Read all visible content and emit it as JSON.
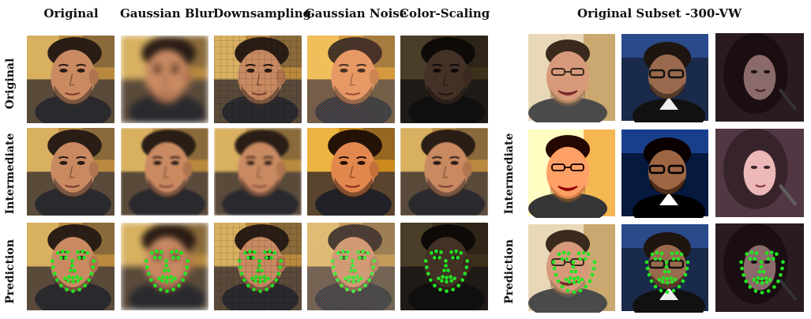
{
  "column_headers": [
    "Original",
    "Gaussian Blur",
    "Downsampling",
    "Gaussian Noise",
    "Color-Scaling"
  ],
  "subset_header": "Original Subset -300-VW",
  "row_labels_left": [
    "Original",
    "Intermediate",
    "Prediction"
  ],
  "row_labels_right": [
    "Intermediate",
    "Prediction"
  ],
  "colors": {
    "landmark": "#22e622",
    "skin": "#c98a62",
    "hair": "#2a1d15",
    "background_warm": "#b98a3e"
  }
}
